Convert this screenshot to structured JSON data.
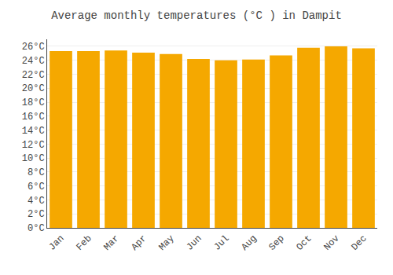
{
  "chart_data": {
    "type": "bar",
    "title": "Average monthly temperatures (°C ) in Dampit",
    "categories": [
      "Jan",
      "Feb",
      "Mar",
      "Apr",
      "May",
      "Jun",
      "Jul",
      "Aug",
      "Sep",
      "Oct",
      "Nov",
      "Dec"
    ],
    "values": [
      25.3,
      25.3,
      25.4,
      25.1,
      24.9,
      24.2,
      24.0,
      24.1,
      24.7,
      25.8,
      26.0,
      25.7
    ],
    "color": "#F5A800",
    "ylim": [
      0,
      27
    ],
    "yticks": [
      {
        "value": 0,
        "label": "0°C"
      },
      {
        "value": 2,
        "label": "2°C"
      },
      {
        "value": 4,
        "label": "4°C"
      },
      {
        "value": 6,
        "label": "6°C"
      },
      {
        "value": 8,
        "label": "8°C"
      },
      {
        "value": 10,
        "label": "10°C"
      },
      {
        "value": 12,
        "label": "12°C"
      },
      {
        "value": 14,
        "label": "14°C"
      },
      {
        "value": 16,
        "label": "16°C"
      },
      {
        "value": 18,
        "label": "18°C"
      },
      {
        "value": 20,
        "label": "20°C"
      },
      {
        "value": 22,
        "label": "22°C"
      },
      {
        "value": 24,
        "label": "24°C"
      },
      {
        "value": 26,
        "label": "26°C"
      }
    ],
    "grid": true
  }
}
